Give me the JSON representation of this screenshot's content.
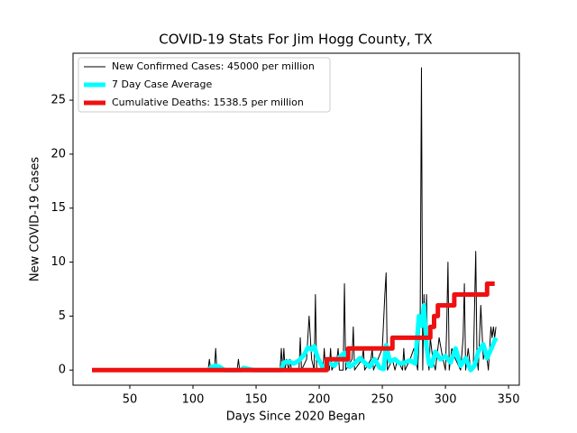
{
  "chart_data": {
    "type": "line",
    "title": "COVID-19 Stats For Jim Hogg County, TX",
    "xlabel": "Days Since 2020 Began",
    "ylabel": "New COVID-19 Cases",
    "xlim": [
      5,
      358.5
    ],
    "ylim": [
      -1.4,
      29.35
    ],
    "xticks": [
      50,
      100,
      150,
      200,
      250,
      300,
      350
    ],
    "yticks": [
      0,
      5,
      10,
      15,
      20,
      25
    ],
    "legend": "upper left",
    "series": [
      {
        "name": "New Confirmed Cases: 45000 per million",
        "color": "#000000",
        "width": 1,
        "x": [
          20,
          112,
          113,
          114,
          117,
          118,
          119,
          135,
          136,
          137,
          169,
          170,
          171,
          172,
          173,
          174,
          176,
          177,
          178,
          184,
          185,
          186,
          190,
          192,
          194,
          196,
          197,
          198,
          203,
          204,
          205,
          208,
          209,
          210,
          214,
          215,
          216,
          219,
          220,
          221,
          226,
          227,
          228,
          234,
          235,
          236,
          241,
          242,
          243,
          250,
          252,
          253,
          254,
          258,
          260,
          262,
          266,
          267,
          268,
          272,
          275,
          278,
          280,
          281,
          282,
          283,
          284,
          285,
          286,
          287,
          288,
          290,
          292,
          295,
          298,
          300,
          301,
          302,
          303,
          305,
          308,
          312,
          314,
          315,
          316,
          318,
          320,
          322,
          324,
          325,
          326,
          328,
          330,
          332,
          334,
          336,
          337,
          338,
          339,
          340
        ],
        "values": [
          0,
          0,
          1,
          0,
          0,
          2,
          0,
          0,
          1,
          0,
          0,
          2,
          0,
          2,
          0,
          1,
          0,
          1,
          0,
          0,
          3,
          0,
          1,
          5,
          1,
          0,
          7,
          0,
          0,
          2,
          0,
          0,
          2,
          0,
          1,
          2,
          0,
          0,
          8,
          0,
          1,
          4,
          0,
          1,
          2,
          0,
          1,
          2,
          0,
          2,
          7,
          9,
          0,
          1,
          0,
          1,
          0,
          2,
          0,
          1,
          2,
          0,
          5,
          28,
          0,
          7,
          2,
          7,
          1,
          0,
          3,
          1,
          0,
          3,
          1,
          0,
          4,
          10,
          0,
          2,
          1,
          0,
          3,
          8,
          0,
          2,
          0,
          0,
          11,
          1,
          0,
          6,
          1,
          2,
          0,
          4,
          3,
          4,
          3,
          4
        ]
      },
      {
        "name": "7 Day Case Average",
        "color": "#00ffff",
        "width": 5,
        "x": [
          112,
          115,
          118,
          121,
          125,
          138,
          140,
          144,
          148,
          170,
          172,
          176,
          180,
          184,
          188,
          191,
          194,
          196,
          199,
          203,
          207,
          212,
          216,
          220,
          224,
          228,
          232,
          236,
          240,
          244,
          248,
          251,
          253,
          256,
          260,
          264,
          268,
          272,
          276,
          279,
          281,
          283,
          285,
          287,
          289,
          292,
          296,
          300,
          304,
          308,
          312,
          316,
          320,
          323,
          326,
          330,
          333,
          336,
          340
        ],
        "values": [
          0,
          0.3,
          0.4,
          0.3,
          0,
          0,
          0.2,
          0.1,
          0,
          0,
          0.7,
          0.8,
          0.6,
          0.9,
          1.4,
          2.1,
          1.9,
          2.2,
          1.1,
          0.2,
          0.7,
          0.4,
          1.2,
          1.6,
          0.3,
          0.6,
          1.1,
          0.7,
          0.3,
          1.0,
          0.2,
          0.1,
          2.3,
          0.8,
          1.0,
          0.6,
          0.7,
          0.9,
          0.6,
          5.0,
          4.1,
          6.0,
          2.2,
          0.6,
          0.4,
          1.7,
          1.0,
          1.3,
          0.7,
          2.0,
          0.4,
          1.1,
          0,
          0.4,
          1.7,
          2.4,
          1.1,
          1.9,
          3.0
        ]
      },
      {
        "name": "Cumulative Deaths: 1538.5 per million",
        "color": "#ee1111",
        "width": 5,
        "x": [
          20,
          206,
          206,
          223,
          223,
          258,
          258,
          288,
          288,
          291,
          291,
          294,
          294,
          307,
          307,
          333,
          333,
          339
        ],
        "values": [
          0,
          0,
          1,
          1,
          2,
          2,
          3,
          3,
          4,
          4,
          5,
          5,
          6,
          6,
          7,
          7,
          8,
          8
        ]
      }
    ]
  }
}
